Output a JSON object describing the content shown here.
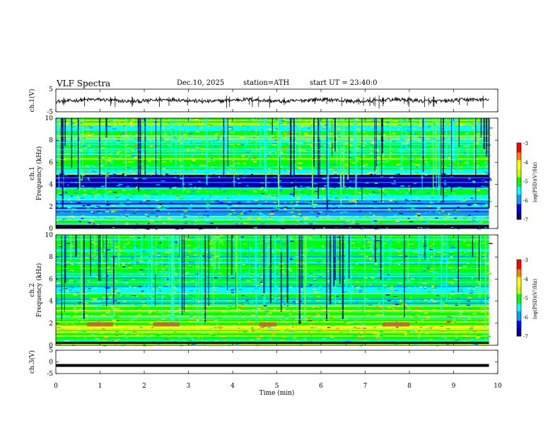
{
  "header": {
    "title": "VLF  Spectra",
    "date": "Dec.10, 2025",
    "station": "station=ATH",
    "start": "start  UT  =    23:40:0"
  },
  "chart_data": [
    {
      "type": "line",
      "ylabel": "ch.1(V)",
      "ylim": [
        -5,
        5
      ],
      "yticks": [
        "5",
        "-5"
      ],
      "trace": "noisy waveform near 0 V with short spikes",
      "line_color": "#000000"
    },
    {
      "type": "heatmap",
      "ylabel": "ch.1\nFrequency (kHz)",
      "ylim": [
        0,
        10
      ],
      "yticks": [
        "0",
        "2",
        "4",
        "6",
        "8",
        "10"
      ],
      "colorbar": {
        "label": "log(PSD)(V²/Hz)",
        "range": [
          -7,
          -3
        ],
        "ticks": [
          "-3",
          "-4",
          "-5",
          "-6",
          "-7"
        ]
      },
      "bands_khz": [
        {
          "from": 0,
          "to": 0.5,
          "level": -6.6
        },
        {
          "from": 0.5,
          "to": 1.2,
          "level": -5.4
        },
        {
          "from": 1.2,
          "to": 2.6,
          "level": -5.8
        },
        {
          "from": 2.6,
          "to": 3.8,
          "level": -5.3
        },
        {
          "from": 3.8,
          "to": 5.0,
          "level": -6.6
        },
        {
          "from": 5.0,
          "to": 10,
          "level": -5.1
        }
      ]
    },
    {
      "type": "heatmap",
      "ylabel": "ch.2\nFrequency (kHz)",
      "ylim": [
        0,
        10
      ],
      "yticks": [
        "0",
        "2",
        "4",
        "6",
        "8",
        "10"
      ],
      "colorbar": {
        "label": "log(PSD)(V²/Hz)",
        "range": [
          -7,
          -3
        ],
        "ticks": [
          "-3",
          "-4",
          "-5",
          "-6",
          "-7"
        ]
      },
      "bands_khz": [
        {
          "from": 0,
          "to": 0.6,
          "level": -5.2
        },
        {
          "from": 0.6,
          "to": 1.6,
          "level": -4.8
        },
        {
          "from": 1.6,
          "to": 2.4,
          "level": -4.6
        },
        {
          "from": 2.4,
          "to": 3.6,
          "level": -4.9
        },
        {
          "from": 3.6,
          "to": 5.0,
          "level": -5.4
        },
        {
          "from": 5.0,
          "to": 10,
          "level": -5.3
        }
      ],
      "markers": [
        {
          "t_from": 0.7,
          "t_to": 1.3,
          "khz": 1.9
        },
        {
          "t_from": 2.2,
          "t_to": 2.8,
          "khz": 1.9
        },
        {
          "t_from": 4.6,
          "t_to": 5.0,
          "khz": 1.9
        },
        {
          "t_from": 7.4,
          "t_to": 8.0,
          "khz": 1.9
        }
      ]
    },
    {
      "type": "line",
      "ylabel": "ch.3(V)",
      "ylim": [
        -5,
        5
      ],
      "yticks": [
        "5",
        "0",
        "-5"
      ],
      "trace": "flat thick line at about -1.5 V",
      "line_value": -1.5,
      "line_color": "#000000"
    }
  ],
  "x_axis": {
    "label": "Time  (min)",
    "range": [
      0,
      10
    ],
    "ticks": [
      "0",
      "1",
      "2",
      "3",
      "4",
      "5",
      "6",
      "7",
      "8",
      "9",
      "10"
    ],
    "data_end": 9.8
  },
  "colors": {
    "colormap": [
      "#00008b",
      "#0000ff",
      "#00a0ff",
      "#00ffff",
      "#00ff00",
      "#c8ff00",
      "#ffff00",
      "#ff8000",
      "#ff0000",
      "#ffffff"
    ]
  }
}
